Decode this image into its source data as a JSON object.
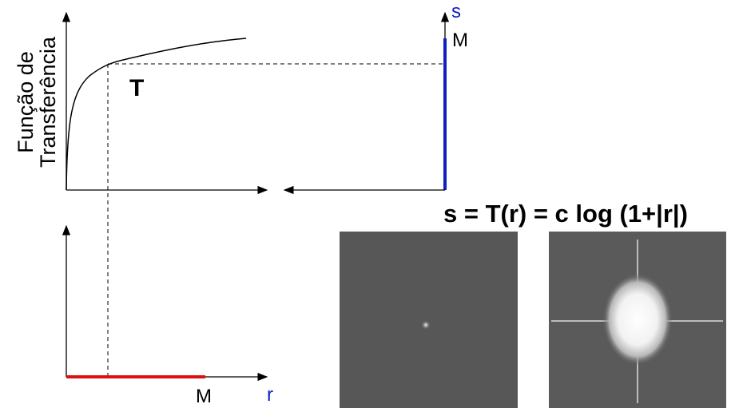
{
  "axis_label": {
    "line1": "Função de",
    "line2": "Transferência"
  },
  "curve_label": "T",
  "output_axis": {
    "name": "s",
    "max": "M"
  },
  "input_axis": {
    "name": "r",
    "max": "M"
  },
  "formula": "s = T(r) = c log (1+|r|)"
}
